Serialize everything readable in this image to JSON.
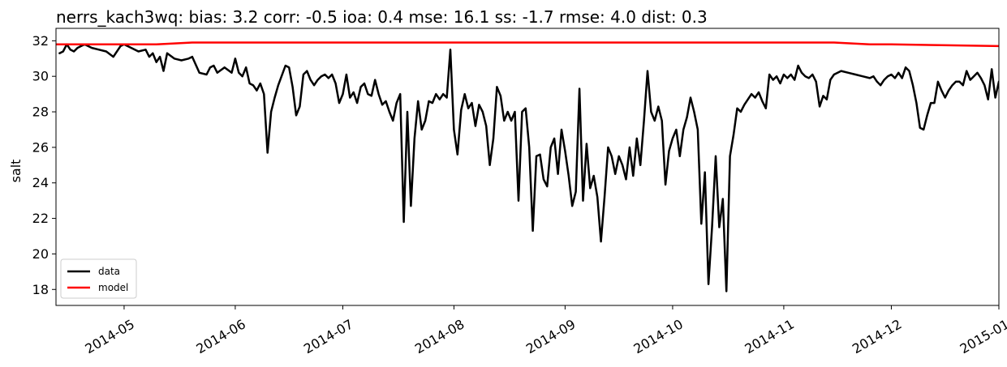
{
  "chart_data": {
    "type": "line",
    "title": "nerrs_kach3wq: bias: 3.2  corr: -0.5  ioa: 0.4  mse: 16.1  ss: -1.7  rmse: 4.0  dist: 0.3",
    "xlabel": "",
    "ylabel": "salt",
    "xlim": [
      "2014-04-12",
      "2014-12-31"
    ],
    "ylim": [
      17.1,
      32.7
    ],
    "x_ticks": [
      "2014-05-01",
      "2014-06-01",
      "2014-07-01",
      "2014-08-01",
      "2014-09-01",
      "2014-10-01",
      "2014-11-01",
      "2014-12-01",
      "2015-01-01"
    ],
    "x_tick_labels": [
      "2014-05",
      "2014-06",
      "2014-07",
      "2014-08",
      "2014-09",
      "2014-10",
      "2014-11",
      "2014-12",
      "2015-01"
    ],
    "y_ticks": [
      18,
      20,
      22,
      24,
      26,
      28,
      30,
      32
    ],
    "y_tick_labels": [
      "18",
      "20",
      "22",
      "24",
      "26",
      "28",
      "30",
      "32"
    ],
    "grid": false,
    "legend_position": "lower-left",
    "series": [
      {
        "name": "data",
        "color": "#000000",
        "points": [
          [
            "2014-04-13",
            31.3
          ],
          [
            "2014-04-14",
            31.4
          ],
          [
            "2014-04-15",
            31.8
          ],
          [
            "2014-04-16",
            31.5
          ],
          [
            "2014-04-17",
            31.4
          ],
          [
            "2014-04-18",
            31.6
          ],
          [
            "2014-04-19",
            31.7
          ],
          [
            "2014-04-20",
            31.8
          ],
          [
            "2014-04-22",
            31.6
          ],
          [
            "2014-04-24",
            31.5
          ],
          [
            "2014-04-26",
            31.4
          ],
          [
            "2014-04-28",
            31.1
          ],
          [
            "2014-04-30",
            31.7
          ],
          [
            "2014-05-01",
            31.8
          ],
          [
            "2014-05-03",
            31.6
          ],
          [
            "2014-05-05",
            31.4
          ],
          [
            "2014-05-07",
            31.5
          ],
          [
            "2014-05-08",
            31.1
          ],
          [
            "2014-05-09",
            31.3
          ],
          [
            "2014-05-10",
            30.8
          ],
          [
            "2014-05-11",
            31.1
          ],
          [
            "2014-05-12",
            30.3
          ],
          [
            "2014-05-13",
            31.3
          ],
          [
            "2014-05-15",
            31.0
          ],
          [
            "2014-05-17",
            30.9
          ],
          [
            "2014-05-19",
            31.0
          ],
          [
            "2014-05-20",
            31.1
          ],
          [
            "2014-05-22",
            30.2
          ],
          [
            "2014-05-24",
            30.1
          ],
          [
            "2014-05-25",
            30.5
          ],
          [
            "2014-05-26",
            30.6
          ],
          [
            "2014-05-27",
            30.2
          ],
          [
            "2014-05-29",
            30.5
          ],
          [
            "2014-05-31",
            30.2
          ],
          [
            "2014-06-01",
            31.0
          ],
          [
            "2014-06-02",
            30.2
          ],
          [
            "2014-06-03",
            30.0
          ],
          [
            "2014-06-04",
            30.5
          ],
          [
            "2014-06-05",
            29.6
          ],
          [
            "2014-06-06",
            29.5
          ],
          [
            "2014-06-07",
            29.2
          ],
          [
            "2014-06-08",
            29.6
          ],
          [
            "2014-06-09",
            29.0
          ],
          [
            "2014-06-10",
            25.7
          ],
          [
            "2014-06-11",
            28.0
          ],
          [
            "2014-06-12",
            28.8
          ],
          [
            "2014-06-13",
            29.5
          ],
          [
            "2014-06-15",
            30.6
          ],
          [
            "2014-06-16",
            30.5
          ],
          [
            "2014-06-17",
            29.4
          ],
          [
            "2014-06-18",
            27.8
          ],
          [
            "2014-06-19",
            28.3
          ],
          [
            "2014-06-20",
            30.1
          ],
          [
            "2014-06-21",
            30.3
          ],
          [
            "2014-06-22",
            29.8
          ],
          [
            "2014-06-23",
            29.5
          ],
          [
            "2014-06-24",
            29.8
          ],
          [
            "2014-06-25",
            30.0
          ],
          [
            "2014-06-26",
            30.1
          ],
          [
            "2014-06-27",
            29.9
          ],
          [
            "2014-06-28",
            30.1
          ],
          [
            "2014-06-29",
            29.6
          ],
          [
            "2014-06-30",
            28.5
          ],
          [
            "2014-07-01",
            29.0
          ],
          [
            "2014-07-02",
            30.1
          ],
          [
            "2014-07-03",
            28.8
          ],
          [
            "2014-07-04",
            29.1
          ],
          [
            "2014-07-05",
            28.5
          ],
          [
            "2014-07-06",
            29.4
          ],
          [
            "2014-07-07",
            29.6
          ],
          [
            "2014-07-08",
            29.0
          ],
          [
            "2014-07-09",
            28.9
          ],
          [
            "2014-07-10",
            29.8
          ],
          [
            "2014-07-11",
            29.0
          ],
          [
            "2014-07-12",
            28.4
          ],
          [
            "2014-07-13",
            28.6
          ],
          [
            "2014-07-14",
            28.0
          ],
          [
            "2014-07-15",
            27.5
          ],
          [
            "2014-07-16",
            28.5
          ],
          [
            "2014-07-17",
            29.0
          ],
          [
            "2014-07-18",
            21.8
          ],
          [
            "2014-07-19",
            28.0
          ],
          [
            "2014-07-20",
            22.7
          ],
          [
            "2014-07-21",
            26.5
          ],
          [
            "2014-07-22",
            28.6
          ],
          [
            "2014-07-23",
            27.0
          ],
          [
            "2014-07-24",
            27.5
          ],
          [
            "2014-07-25",
            28.6
          ],
          [
            "2014-07-26",
            28.5
          ],
          [
            "2014-07-27",
            29.0
          ],
          [
            "2014-07-28",
            28.7
          ],
          [
            "2014-07-29",
            29.0
          ],
          [
            "2014-07-30",
            28.8
          ],
          [
            "2014-07-31",
            31.5
          ],
          [
            "2014-08-01",
            27.0
          ],
          [
            "2014-08-02",
            25.6
          ],
          [
            "2014-08-03",
            28.1
          ],
          [
            "2014-08-04",
            29.0
          ],
          [
            "2014-08-05",
            28.2
          ],
          [
            "2014-08-06",
            28.5
          ],
          [
            "2014-08-07",
            27.2
          ],
          [
            "2014-08-08",
            28.4
          ],
          [
            "2014-08-09",
            28.0
          ],
          [
            "2014-08-10",
            27.2
          ],
          [
            "2014-08-11",
            25.0
          ],
          [
            "2014-08-12",
            26.5
          ],
          [
            "2014-08-13",
            29.4
          ],
          [
            "2014-08-14",
            28.9
          ],
          [
            "2014-08-15",
            27.5
          ],
          [
            "2014-08-16",
            28.0
          ],
          [
            "2014-08-17",
            27.5
          ],
          [
            "2014-08-18",
            28.0
          ],
          [
            "2014-08-19",
            23.0
          ],
          [
            "2014-08-20",
            28.0
          ],
          [
            "2014-08-21",
            28.2
          ],
          [
            "2014-08-22",
            26.0
          ],
          [
            "2014-08-23",
            21.3
          ],
          [
            "2014-08-24",
            25.5
          ],
          [
            "2014-08-25",
            25.6
          ],
          [
            "2014-08-26",
            24.2
          ],
          [
            "2014-08-27",
            23.8
          ],
          [
            "2014-08-28",
            26.0
          ],
          [
            "2014-08-29",
            26.5
          ],
          [
            "2014-08-30",
            24.5
          ],
          [
            "2014-08-31",
            27.0
          ],
          [
            "2014-09-01",
            25.8
          ],
          [
            "2014-09-02",
            24.4
          ],
          [
            "2014-09-03",
            22.7
          ],
          [
            "2014-09-04",
            23.5
          ],
          [
            "2014-09-05",
            29.3
          ],
          [
            "2014-09-06",
            23.0
          ],
          [
            "2014-09-07",
            26.2
          ],
          [
            "2014-09-08",
            23.7
          ],
          [
            "2014-09-09",
            24.4
          ],
          [
            "2014-09-10",
            23.2
          ],
          [
            "2014-09-11",
            20.7
          ],
          [
            "2014-09-12",
            23.2
          ],
          [
            "2014-09-13",
            26.0
          ],
          [
            "2014-09-14",
            25.5
          ],
          [
            "2014-09-15",
            24.5
          ],
          [
            "2014-09-16",
            25.5
          ],
          [
            "2014-09-17",
            25.0
          ],
          [
            "2014-09-18",
            24.2
          ],
          [
            "2014-09-19",
            26.0
          ],
          [
            "2014-09-20",
            24.4
          ],
          [
            "2014-09-21",
            26.5
          ],
          [
            "2014-09-22",
            25.0
          ],
          [
            "2014-09-23",
            27.5
          ],
          [
            "2014-09-24",
            30.3
          ],
          [
            "2014-09-25",
            28.0
          ],
          [
            "2014-09-26",
            27.5
          ],
          [
            "2014-09-27",
            28.3
          ],
          [
            "2014-09-28",
            27.5
          ],
          [
            "2014-09-29",
            23.9
          ],
          [
            "2014-09-30",
            25.8
          ],
          [
            "2014-10-01",
            26.5
          ],
          [
            "2014-10-02",
            27.0
          ],
          [
            "2014-10-03",
            25.5
          ],
          [
            "2014-10-04",
            27.0
          ],
          [
            "2014-10-05",
            27.7
          ],
          [
            "2014-10-06",
            28.8
          ],
          [
            "2014-10-07",
            28.0
          ],
          [
            "2014-10-08",
            27.0
          ],
          [
            "2014-10-09",
            21.7
          ],
          [
            "2014-10-10",
            24.6
          ],
          [
            "2014-10-11",
            18.3
          ],
          [
            "2014-10-12",
            21.5
          ],
          [
            "2014-10-13",
            25.5
          ],
          [
            "2014-10-14",
            21.5
          ],
          [
            "2014-10-15",
            23.1
          ],
          [
            "2014-10-16",
            17.9
          ],
          [
            "2014-10-17",
            25.5
          ],
          [
            "2014-10-18",
            26.7
          ],
          [
            "2014-10-19",
            28.2
          ],
          [
            "2014-10-20",
            28.0
          ],
          [
            "2014-10-21",
            28.4
          ],
          [
            "2014-10-22",
            28.7
          ],
          [
            "2014-10-23",
            29.0
          ],
          [
            "2014-10-24",
            28.8
          ],
          [
            "2014-10-25",
            29.1
          ],
          [
            "2014-10-26",
            28.6
          ],
          [
            "2014-10-27",
            28.2
          ],
          [
            "2014-10-28",
            30.1
          ],
          [
            "2014-10-29",
            29.8
          ],
          [
            "2014-10-30",
            30.0
          ],
          [
            "2014-10-31",
            29.6
          ],
          [
            "2014-11-01",
            30.1
          ],
          [
            "2014-11-02",
            29.9
          ],
          [
            "2014-11-03",
            30.1
          ],
          [
            "2014-11-04",
            29.8
          ],
          [
            "2014-11-05",
            30.6
          ],
          [
            "2014-11-06",
            30.2
          ],
          [
            "2014-11-07",
            30.0
          ],
          [
            "2014-11-08",
            29.9
          ],
          [
            "2014-11-09",
            30.1
          ],
          [
            "2014-11-10",
            29.7
          ],
          [
            "2014-11-11",
            28.3
          ],
          [
            "2014-11-12",
            28.9
          ],
          [
            "2014-11-13",
            28.7
          ],
          [
            "2014-11-14",
            29.8
          ],
          [
            "2014-11-15",
            30.1
          ],
          [
            "2014-11-17",
            30.3
          ],
          [
            "2014-11-19",
            30.2
          ],
          [
            "2014-11-21",
            30.1
          ],
          [
            "2014-11-23",
            30.0
          ],
          [
            "2014-11-25",
            29.9
          ],
          [
            "2014-11-26",
            30.0
          ],
          [
            "2014-11-27",
            29.7
          ],
          [
            "2014-11-28",
            29.5
          ],
          [
            "2014-11-29",
            29.8
          ],
          [
            "2014-11-30",
            30.0
          ],
          [
            "2014-12-01",
            30.1
          ],
          [
            "2014-12-02",
            29.9
          ],
          [
            "2014-12-03",
            30.2
          ],
          [
            "2014-12-04",
            29.9
          ],
          [
            "2014-12-05",
            30.5
          ],
          [
            "2014-12-06",
            30.3
          ],
          [
            "2014-12-07",
            29.5
          ],
          [
            "2014-12-08",
            28.5
          ],
          [
            "2014-12-09",
            27.1
          ],
          [
            "2014-12-10",
            27.0
          ],
          [
            "2014-12-11",
            27.8
          ],
          [
            "2014-12-12",
            28.5
          ],
          [
            "2014-12-13",
            28.5
          ],
          [
            "2014-12-14",
            29.7
          ],
          [
            "2014-12-15",
            29.2
          ],
          [
            "2014-12-16",
            28.8
          ],
          [
            "2014-12-17",
            29.2
          ],
          [
            "2014-12-18",
            29.5
          ],
          [
            "2014-12-19",
            29.7
          ],
          [
            "2014-12-20",
            29.7
          ],
          [
            "2014-12-21",
            29.5
          ],
          [
            "2014-12-22",
            30.3
          ],
          [
            "2014-12-23",
            29.8
          ],
          [
            "2014-12-24",
            30.0
          ],
          [
            "2014-12-25",
            30.2
          ],
          [
            "2014-12-26",
            29.9
          ],
          [
            "2014-12-27",
            29.5
          ],
          [
            "2014-12-28",
            28.7
          ],
          [
            "2014-12-29",
            30.4
          ],
          [
            "2014-12-30",
            28.8
          ],
          [
            "2014-12-31",
            29.7
          ]
        ]
      },
      {
        "name": "model",
        "color": "#ff0000",
        "points": [
          [
            "2014-04-12",
            31.8
          ],
          [
            "2014-05-01",
            31.8
          ],
          [
            "2014-05-10",
            31.8
          ],
          [
            "2014-05-20",
            31.9
          ],
          [
            "2014-06-01",
            31.9
          ],
          [
            "2014-06-10",
            31.9
          ],
          [
            "2014-06-20",
            31.9
          ],
          [
            "2014-07-01",
            31.9
          ],
          [
            "2014-07-15",
            31.9
          ],
          [
            "2014-08-01",
            31.9
          ],
          [
            "2014-08-15",
            31.9
          ],
          [
            "2014-09-01",
            31.9
          ],
          [
            "2014-09-15",
            31.9
          ],
          [
            "2014-10-01",
            31.9
          ],
          [
            "2014-10-15",
            31.9
          ],
          [
            "2014-11-01",
            31.9
          ],
          [
            "2014-11-15",
            31.9
          ],
          [
            "2014-11-25",
            31.8
          ],
          [
            "2014-12-01",
            31.8
          ],
          [
            "2014-12-15",
            31.75
          ],
          [
            "2014-12-31",
            31.7
          ]
        ]
      }
    ]
  }
}
